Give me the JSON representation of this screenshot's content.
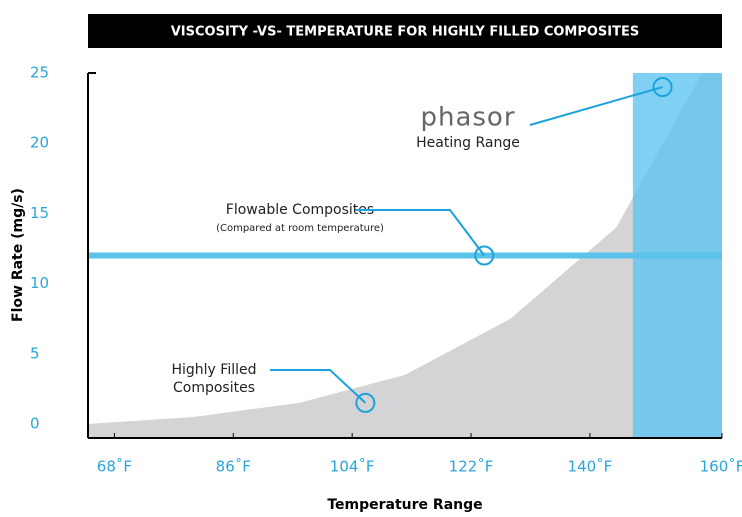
{
  "chart_data": {
    "type": "area",
    "title": "VISCOSITY -VS- TEMPERATURE FOR HIGHLY FILLED COMPOSITES",
    "xlabel": "Temperature Range",
    "ylabel": "Flow Rate (mg/s)",
    "x": [
      64,
      80,
      96,
      112,
      128,
      144,
      157,
      160
    ],
    "series": [
      {
        "name": "Highly Filled Composites",
        "color": "#d4d4d6",
        "values": [
          0,
          0.5,
          1.5,
          3.5,
          7.5,
          14,
          25,
          25
        ]
      }
    ],
    "xlim": [
      64,
      160
    ],
    "xticks": [
      {
        "value": 68,
        "label": "68˚F"
      },
      {
        "value": 86,
        "label": "86˚F"
      },
      {
        "value": 104,
        "label": "104˚F"
      },
      {
        "value": 122,
        "label": "122˚F"
      },
      {
        "value": 140,
        "label": "140˚F"
      },
      {
        "value": 160,
        "label": "160˚F"
      }
    ],
    "ylim": [
      -1,
      25
    ],
    "yticks": [
      0,
      5,
      10,
      15,
      20,
      25
    ],
    "highlight": {
      "x": [
        146.5,
        160
      ],
      "color": "#5cc3ef"
    },
    "reference_line": {
      "value": 12,
      "color": "#5bc2ea"
    },
    "logo": "phasor",
    "annotations": [
      {
        "text": "Heating Range",
        "x": 151,
        "y": 24
      },
      {
        "text": "Flowable Composites",
        "subtext": "(Compared at room temperature)",
        "x": 124,
        "y": 12
      },
      {
        "text": "Highly Filled",
        "subtext": "Composites",
        "x": 106,
        "y": 1.5
      }
    ]
  }
}
